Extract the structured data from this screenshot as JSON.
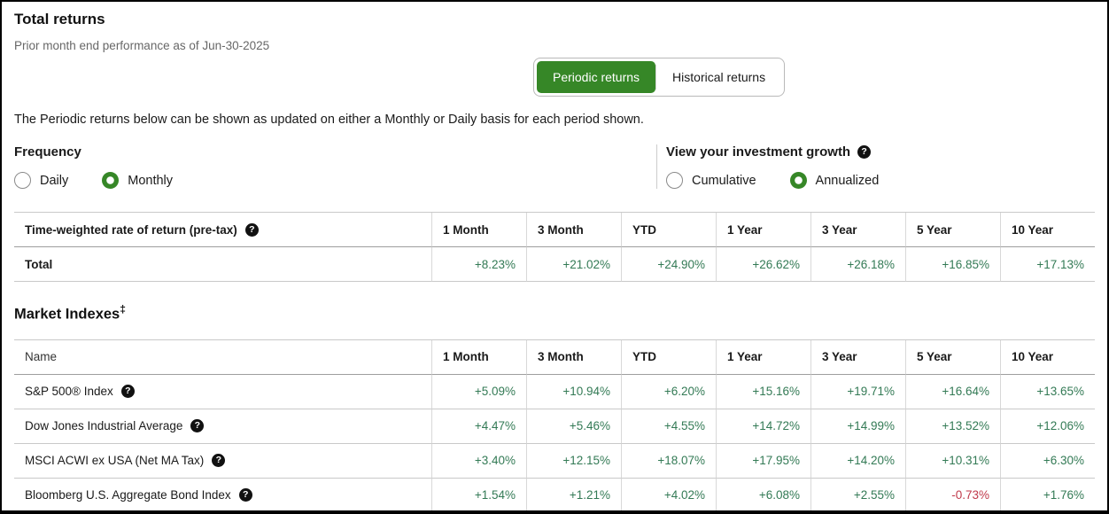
{
  "page": {
    "title": "Total returns",
    "subtitle": "Prior month end performance as of Jun-30-2025",
    "description": "The Periodic returns below can be shown as updated on either a Monthly or Daily basis for each period shown."
  },
  "tabs": {
    "periodic_label": "Periodic returns",
    "historical_label": "Historical returns",
    "selected": "Periodic returns"
  },
  "frequency": {
    "label": "Frequency",
    "options": [
      "Daily",
      "Monthly"
    ],
    "selected": "Monthly"
  },
  "growth": {
    "label": "View your investment growth",
    "help_icon": "?",
    "options": [
      "Cumulative",
      "Annualized"
    ],
    "selected": "Annualized"
  },
  "returns_table": {
    "row_header_label": "Time-weighted rate of return (pre-tax)",
    "columns": [
      "1 Month",
      "3 Month",
      "YTD",
      "1 Year",
      "3 Year",
      "5 Year",
      "10 Year"
    ],
    "rows": [
      {
        "name": "Total",
        "bold": true,
        "has_help": false,
        "values": [
          "+8.23%",
          "+21.02%",
          "+24.90%",
          "+26.62%",
          "+26.18%",
          "+16.85%",
          "+17.13%"
        ]
      }
    ]
  },
  "market_indexes": {
    "title": "Market Indexes",
    "title_sup": "‡",
    "name_header": "Name",
    "columns": [
      "1 Month",
      "3 Month",
      "YTD",
      "1 Year",
      "3 Year",
      "5 Year",
      "10 Year"
    ],
    "rows": [
      {
        "name": "S&P 500® Index",
        "bold": false,
        "has_help": true,
        "values": [
          "+5.09%",
          "+10.94%",
          "+6.20%",
          "+15.16%",
          "+19.71%",
          "+16.64%",
          "+13.65%"
        ]
      },
      {
        "name": "Dow Jones Industrial Average",
        "bold": false,
        "has_help": true,
        "values": [
          "+4.47%",
          "+5.46%",
          "+4.55%",
          "+14.72%",
          "+14.99%",
          "+13.52%",
          "+12.06%"
        ]
      },
      {
        "name": "MSCI ACWI ex USA (Net MA Tax)",
        "bold": false,
        "has_help": true,
        "values": [
          "+3.40%",
          "+12.15%",
          "+18.07%",
          "+17.95%",
          "+14.20%",
          "+10.31%",
          "+6.30%"
        ]
      },
      {
        "name": "Bloomberg U.S. Aggregate Bond Index",
        "bold": false,
        "has_help": true,
        "values": [
          "+1.54%",
          "+1.21%",
          "+4.02%",
          "+6.08%",
          "+2.55%",
          "-0.73%",
          "+1.76%"
        ]
      }
    ]
  },
  "colors": {
    "accent_green": "#368727",
    "positive_value": "#337a55",
    "negative_value": "#c03a4b"
  }
}
